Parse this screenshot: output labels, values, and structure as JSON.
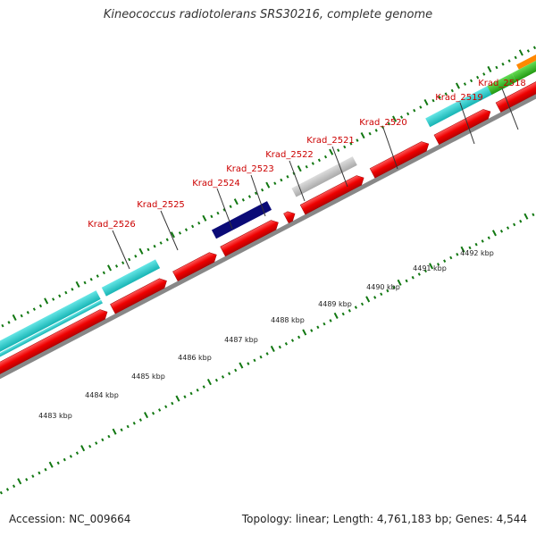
{
  "title": "Kineococcus radiotolerans SRS30216, complete genome",
  "accession": "Accession: NC_009664",
  "topology": "Topology: linear; Length: 4,761,183 bp; Genes: 4,544",
  "scale_labels": [
    "4483 kbp",
    "4484 kbp",
    "4485 kbp",
    "4486 kbp",
    "4487 kbp",
    "4488 kbp",
    "4489 kbp",
    "4490 kbp",
    "4491 kbp",
    "4492 kbp"
  ],
  "gene_labels": [
    "Krad_2526",
    "Krad_2525",
    "Krad_2524",
    "Krad_2523",
    "Krad_2522",
    "Krad_2521",
    "Krad_2520",
    "Krad_2519",
    "Krad_2518"
  ],
  "colors": {
    "cds": "#ee0000",
    "cyan": "#22cccc",
    "navy": "#0b0b77",
    "gray": "#bbbbbb",
    "green": "#33bb22",
    "orange": "#ff8800",
    "label": "#cc0000",
    "tick": "#117711",
    "axis": "#888888"
  }
}
